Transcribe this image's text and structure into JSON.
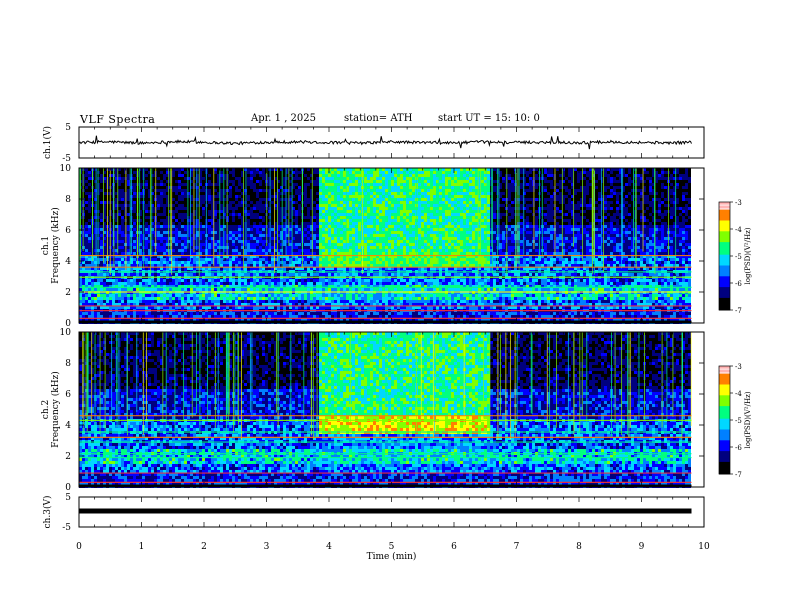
{
  "header": {
    "title": "VLF  Spectra",
    "date": "Apr. 1  , 2025",
    "station": "station= ATH",
    "start_ut": "start  UT  =    15: 10: 0"
  },
  "colors": {
    "scale": [
      "#000000",
      "#00007f",
      "#0000ff",
      "#0080ff",
      "#00d8ff",
      "#00ff80",
      "#80ff00",
      "#ffff00",
      "#ff8000",
      "#ff0000",
      "#ffffff"
    ]
  },
  "chart_data": [
    {
      "type": "line",
      "ylabel": "ch.1(V)",
      "ylim": [
        -5,
        5
      ],
      "yticks": [
        "5",
        "-5"
      ],
      "xlim": [
        0,
        10
      ],
      "grid": false,
      "series": [
        {
          "x": [
            0,
            0.5,
            1,
            1.5,
            2,
            2.5,
            3,
            3.5,
            4,
            4.5,
            5,
            5.5,
            6,
            6.5,
            7,
            7.5,
            8,
            8.5,
            9,
            9.5,
            9.8
          ],
          "values": [
            0,
            0.2,
            -0.2,
            0.3,
            0.1,
            -0.3,
            0.1,
            0.2,
            0,
            -0.2,
            0.2,
            0,
            -0.1,
            0.2,
            0,
            0.1,
            -0.1,
            0.2,
            0,
            -0.1,
            0.1
          ]
        }
      ]
    },
    {
      "type": "heatmap",
      "ylabel": "ch.1\nFrequency  (kHz)",
      "ylim": [
        0,
        10
      ],
      "yticks": [
        "0",
        "2",
        "4",
        "6",
        "8",
        "10"
      ],
      "xlim": [
        0,
        10
      ],
      "colorbar": {
        "label": "log(PSD)(V²/Hz)",
        "range": [
          -7,
          -3
        ],
        "ticks": [
          "-3",
          "-4",
          "-5",
          "-6",
          "-7"
        ]
      },
      "segments": [
        {
          "t_start": 0,
          "t_end": 3.8,
          "description": "impulsive broadband emissions, dark upper band"
        },
        {
          "t_start": 3.8,
          "t_end": 6.55,
          "description": "enhanced broadband noise 4-10 kHz"
        },
        {
          "t_start": 6.55,
          "t_end": 9.8,
          "description": "impulsive broadband emissions, dark upper band"
        }
      ],
      "band_min_khz": 4.1,
      "band_max_khz": 4.5,
      "log_psd_range": [
        -7,
        -3
      ]
    },
    {
      "type": "heatmap",
      "ylabel": "ch.2\nFrequency  (kHz)",
      "ylim": [
        0,
        10
      ],
      "yticks": [
        "0",
        "2",
        "4",
        "6",
        "8",
        "10"
      ],
      "xlim": [
        0,
        10
      ],
      "colorbar": {
        "label": "log(PSD)(V²/Hz)",
        "range": [
          -7,
          -3
        ],
        "ticks": [
          "-3",
          "-4",
          "-5",
          "-6",
          "-7"
        ]
      },
      "segments": [
        {
          "t_start": 0,
          "t_end": 3.8
        },
        {
          "t_start": 3.8,
          "t_end": 6.55
        },
        {
          "t_start": 6.55,
          "t_end": 9.8
        }
      ],
      "log_psd_range": [
        -7,
        -3
      ]
    },
    {
      "type": "line",
      "ylabel": "ch.3(V)",
      "ylim": [
        -5,
        5
      ],
      "yticks": [
        "5",
        "-5"
      ],
      "xlabel": "Time  (min)",
      "xlim": [
        0,
        10
      ],
      "xticks": [
        "0",
        "1",
        "2",
        "3",
        "4",
        "5",
        "6",
        "7",
        "8",
        "9",
        "10"
      ],
      "series": [
        {
          "x": [
            0,
            9.8
          ],
          "values": [
            0,
            0
          ]
        }
      ]
    }
  ]
}
